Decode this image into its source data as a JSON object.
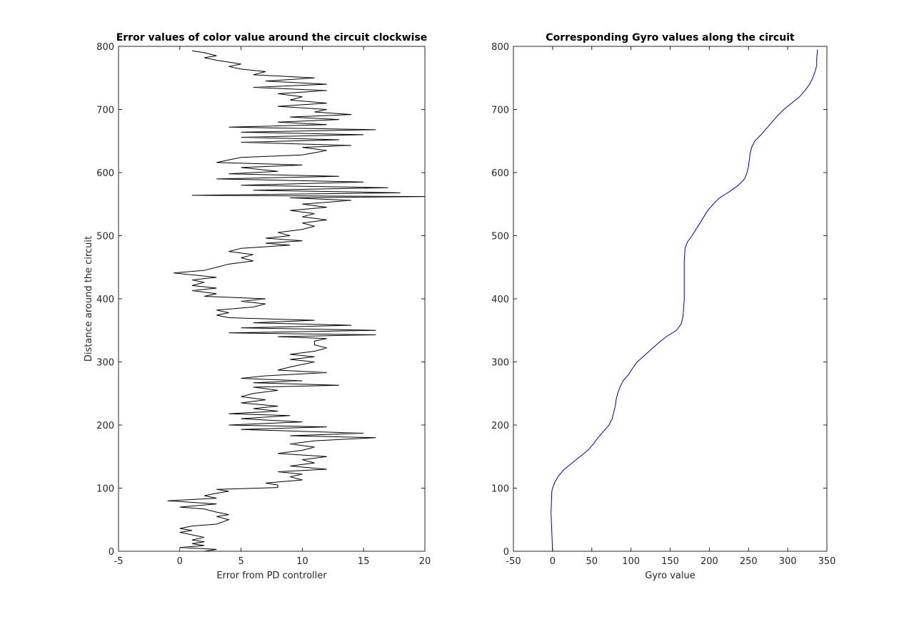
{
  "chart_data": [
    {
      "type": "line",
      "title": "Error values of color value around the circuit clockwise",
      "x_label": "Error from PD controller",
      "y_label": "Distance around the circuit",
      "color": "#000000",
      "x": [
        2,
        3,
        0,
        2,
        1,
        2,
        1,
        2,
        1,
        0,
        1,
        0,
        1,
        3,
        4,
        3,
        4,
        3,
        2,
        0,
        3,
        -1,
        3,
        2,
        3,
        4,
        3,
        8,
        8,
        7,
        10,
        9,
        10,
        8,
        12,
        9,
        11,
        10,
        12,
        8,
        10,
        11,
        9,
        11,
        16,
        9,
        15,
        10,
        5,
        12,
        4,
        10,
        5,
        9,
        4,
        8,
        6,
        8,
        5,
        7,
        5,
        6,
        8,
        6,
        13,
        6,
        10,
        5,
        7,
        12,
        8,
        9,
        10,
        11,
        9,
        11,
        9,
        11,
        12,
        11,
        11,
        12,
        8,
        16,
        4,
        16,
        5,
        14,
        6,
        11,
        4,
        3,
        4,
        3,
        6,
        7,
        5,
        7,
        2,
        3,
        1,
        3,
        1,
        2,
        1,
        3,
        1,
        -0.5,
        2,
        3,
        4,
        6,
        5,
        6,
        4,
        5,
        9,
        7,
        10,
        7,
        9,
        8,
        10,
        11,
        10,
        12,
        10,
        11,
        9,
        12,
        10,
        14,
        9,
        20,
        1,
        18,
        6,
        17,
        5,
        15,
        3,
        13,
        4,
        8,
        5,
        10,
        3,
        4,
        5,
        10,
        12,
        10,
        14,
        5,
        13,
        5,
        15,
        5,
        16,
        4,
        12,
        8,
        13,
        9,
        14,
        11,
        12,
        8,
        12,
        9,
        10,
        8,
        12,
        6,
        12,
        7,
        11,
        6,
        7,
        5,
        4,
        5,
        3,
        2,
        3,
        2,
        1
      ],
      "values": [
        0,
        3,
        6,
        9,
        12,
        15,
        18,
        22,
        26,
        30,
        33,
        36,
        40,
        43,
        50,
        55,
        58,
        62,
        67,
        70,
        75,
        80,
        84,
        88,
        92,
        95,
        98,
        101,
        105,
        108,
        113,
        118,
        122,
        126,
        130,
        135,
        140,
        145,
        150,
        155,
        160,
        165,
        170,
        175,
        180,
        183,
        187,
        190,
        193,
        197,
        200,
        205,
        210,
        215,
        218,
        222,
        226,
        230,
        235,
        240,
        245,
        250,
        255,
        260,
        263,
        267,
        270,
        274,
        278,
        283,
        287,
        292,
        296,
        300,
        304,
        308,
        312,
        317,
        322,
        327,
        333,
        337,
        340,
        343,
        346,
        350,
        354,
        358,
        362,
        366,
        370,
        374,
        378,
        382,
        387,
        392,
        396,
        400,
        404,
        408,
        413,
        417,
        421,
        426,
        430,
        434,
        438,
        441,
        445,
        450,
        455,
        460,
        465,
        470,
        475,
        480,
        485,
        488,
        492,
        496,
        500,
        505,
        510,
        515,
        520,
        525,
        530,
        535,
        540,
        545,
        550,
        556,
        560,
        562,
        564,
        568,
        572,
        576,
        580,
        585,
        590,
        594,
        598,
        602,
        608,
        612,
        616,
        620,
        624,
        628,
        635,
        640,
        643,
        648,
        652,
        656,
        660,
        664,
        668,
        672,
        676,
        680,
        684,
        688,
        692,
        696,
        700,
        705,
        710,
        715,
        720,
        725,
        730,
        735,
        740,
        745,
        750,
        755,
        760,
        764,
        768,
        772,
        778,
        782,
        785,
        790,
        793
      ],
      "xlim": [
        -5,
        20
      ],
      "xticks": [
        -5,
        0,
        5,
        10,
        15,
        20
      ],
      "ylim": [
        0,
        800
      ],
      "yticks": [
        0,
        100,
        200,
        300,
        400,
        500,
        600,
        700,
        800
      ]
    },
    {
      "type": "line",
      "title": "Corresponding Gyro values along the circuit",
      "x_label": "Gyro value",
      "color": "#0000aa",
      "x": [
        0,
        -1,
        -2,
        -1,
        0,
        3,
        8,
        15,
        25,
        35,
        45,
        52,
        58,
        65,
        72,
        76,
        78,
        80,
        81,
        83,
        86,
        90,
        97,
        102,
        108,
        117,
        126,
        135,
        145,
        158,
        164,
        166,
        167,
        168,
        168,
        168,
        168,
        169,
        172,
        178,
        183,
        188,
        193,
        198,
        205,
        213,
        226,
        237,
        245,
        248,
        250,
        251,
        252,
        254,
        258,
        266,
        273,
        280,
        287,
        295,
        305,
        315,
        322,
        328,
        332,
        335,
        337,
        337,
        338
      ],
      "values": [
        0,
        30,
        60,
        95,
        100,
        110,
        120,
        130,
        140,
        150,
        160,
        170,
        180,
        190,
        200,
        210,
        220,
        230,
        240,
        250,
        260,
        270,
        280,
        290,
        300,
        310,
        320,
        330,
        340,
        350,
        360,
        370,
        380,
        400,
        420,
        440,
        460,
        480,
        490,
        500,
        510,
        520,
        530,
        540,
        550,
        560,
        570,
        580,
        590,
        600,
        610,
        620,
        630,
        640,
        650,
        660,
        670,
        680,
        690,
        700,
        710,
        720,
        730,
        740,
        750,
        760,
        770,
        780,
        795
      ],
      "xlim": [
        -50,
        350
      ],
      "xticks": [
        -50,
        0,
        50,
        100,
        150,
        200,
        250,
        300,
        350
      ],
      "ylim": [
        0,
        800
      ],
      "yticks": [
        0,
        100,
        200,
        300,
        400,
        500,
        600,
        700,
        800
      ]
    }
  ]
}
